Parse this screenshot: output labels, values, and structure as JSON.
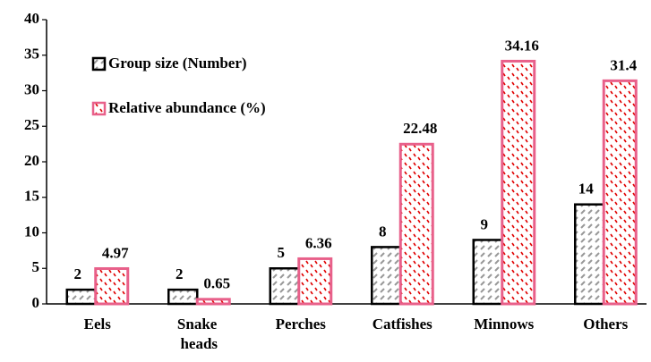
{
  "chart_data": {
    "type": "bar",
    "categories": [
      "Eels",
      "Snake heads",
      "Perches",
      "Catfishes",
      "Minnows",
      "Others"
    ],
    "series": [
      {
        "name": "Group size (Number)",
        "color": "#000000",
        "values": [
          2,
          2,
          5,
          8,
          9,
          14
        ]
      },
      {
        "name": "Relative abundance (%)",
        "color": "#e8608a",
        "values": [
          4.97,
          0.65,
          6.36,
          22.48,
          34.16,
          31.4
        ]
      }
    ],
    "ylim": [
      0,
      40
    ],
    "yticks": [
      0,
      5,
      10,
      15,
      20,
      25,
      30,
      35,
      40
    ],
    "grid": false,
    "legend": "top-left"
  }
}
